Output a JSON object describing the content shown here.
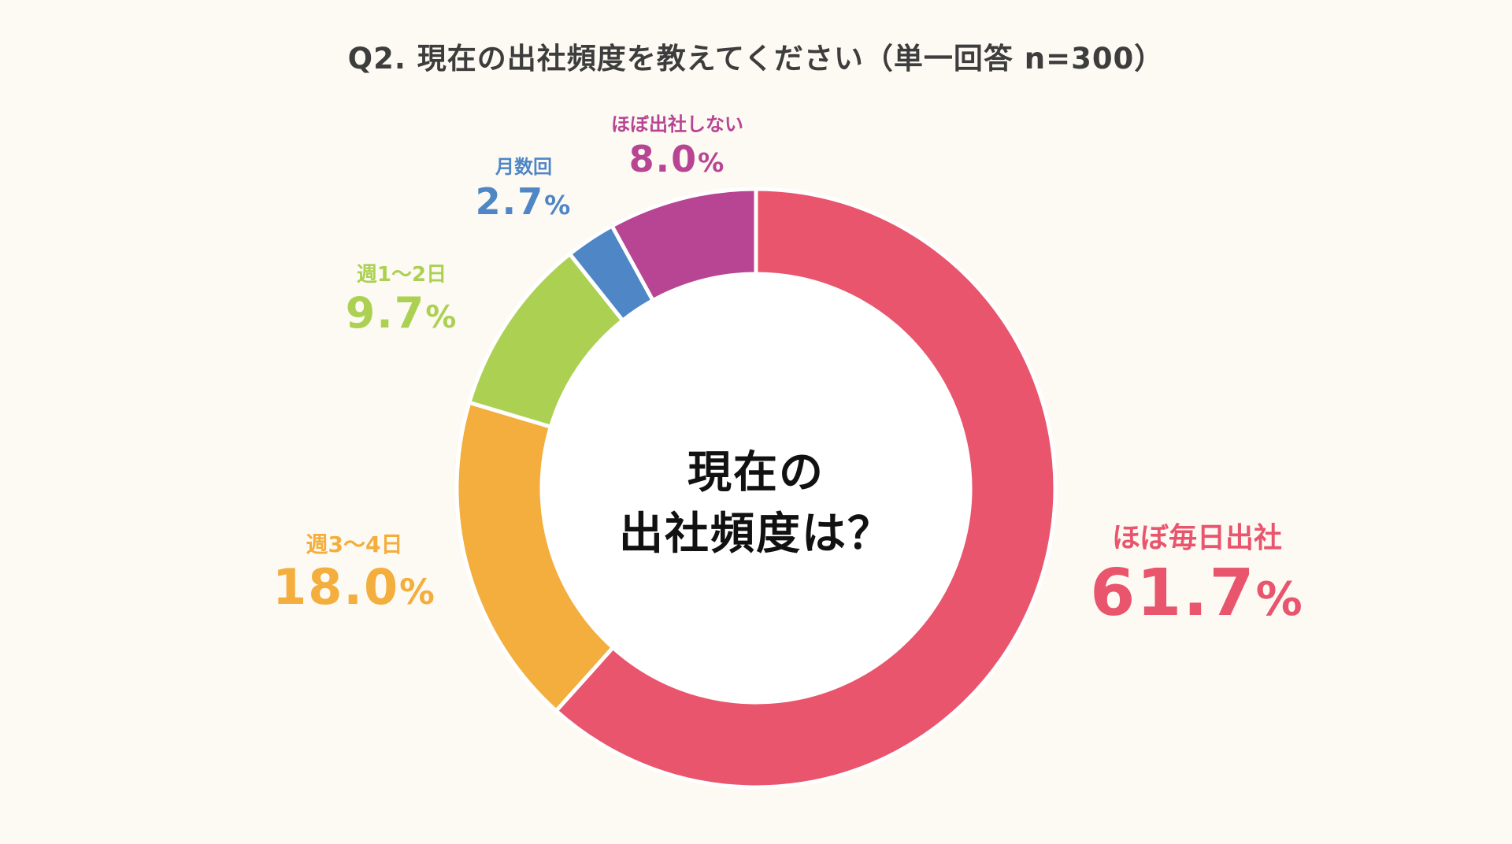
{
  "chart_data": {
    "type": "pie",
    "title": "Q2. 現在の出社頻度を教えてください（単一回答 n=300）",
    "center_text": [
      "現在の",
      "出社頻度は？"
    ],
    "categories": [
      "ほぼ毎日出社",
      "週3〜4日",
      "週1〜2日",
      "月数回",
      "ほぼ出社しない"
    ],
    "values": [
      61.7,
      18.0,
      9.7,
      2.7,
      8.0
    ],
    "value_labels": [
      "61.7",
      "18.0",
      "9.7",
      "2.7",
      "8.0"
    ],
    "unit": "%",
    "colors": [
      "#e8556d",
      "#f3ae3d",
      "#acd152",
      "#4f86c6",
      "#b84593"
    ],
    "start_angle_deg": 0,
    "direction": "clockwise",
    "style": "donut"
  }
}
